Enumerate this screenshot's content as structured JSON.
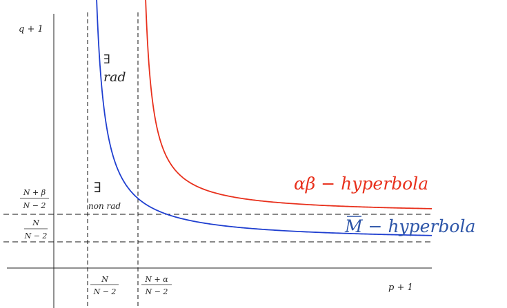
{
  "axes": {
    "x_label": "p + 1",
    "y_label": "q + 1"
  },
  "ticks": {
    "x1": {
      "num": "N",
      "den": "N − 2"
    },
    "x2": {
      "num": "N + α",
      "den": "N − 2"
    },
    "y1": {
      "num": "N + β",
      "den": "N − 2"
    },
    "y2": {
      "num": "N",
      "den": "N − 2"
    }
  },
  "regions": {
    "radial_symbol": "∃",
    "radial_text": "rad",
    "nonradial_symbol": "∃",
    "nonradial_text": "non rad"
  },
  "curves": {
    "alpha_beta": {
      "label": "αβ − hyperbola",
      "color": "#e8301c"
    },
    "M": {
      "label": "M − hyperbola",
      "bar": "M",
      "color": "#1f3fd0",
      "label_color": "#2d55a8"
    }
  }
}
